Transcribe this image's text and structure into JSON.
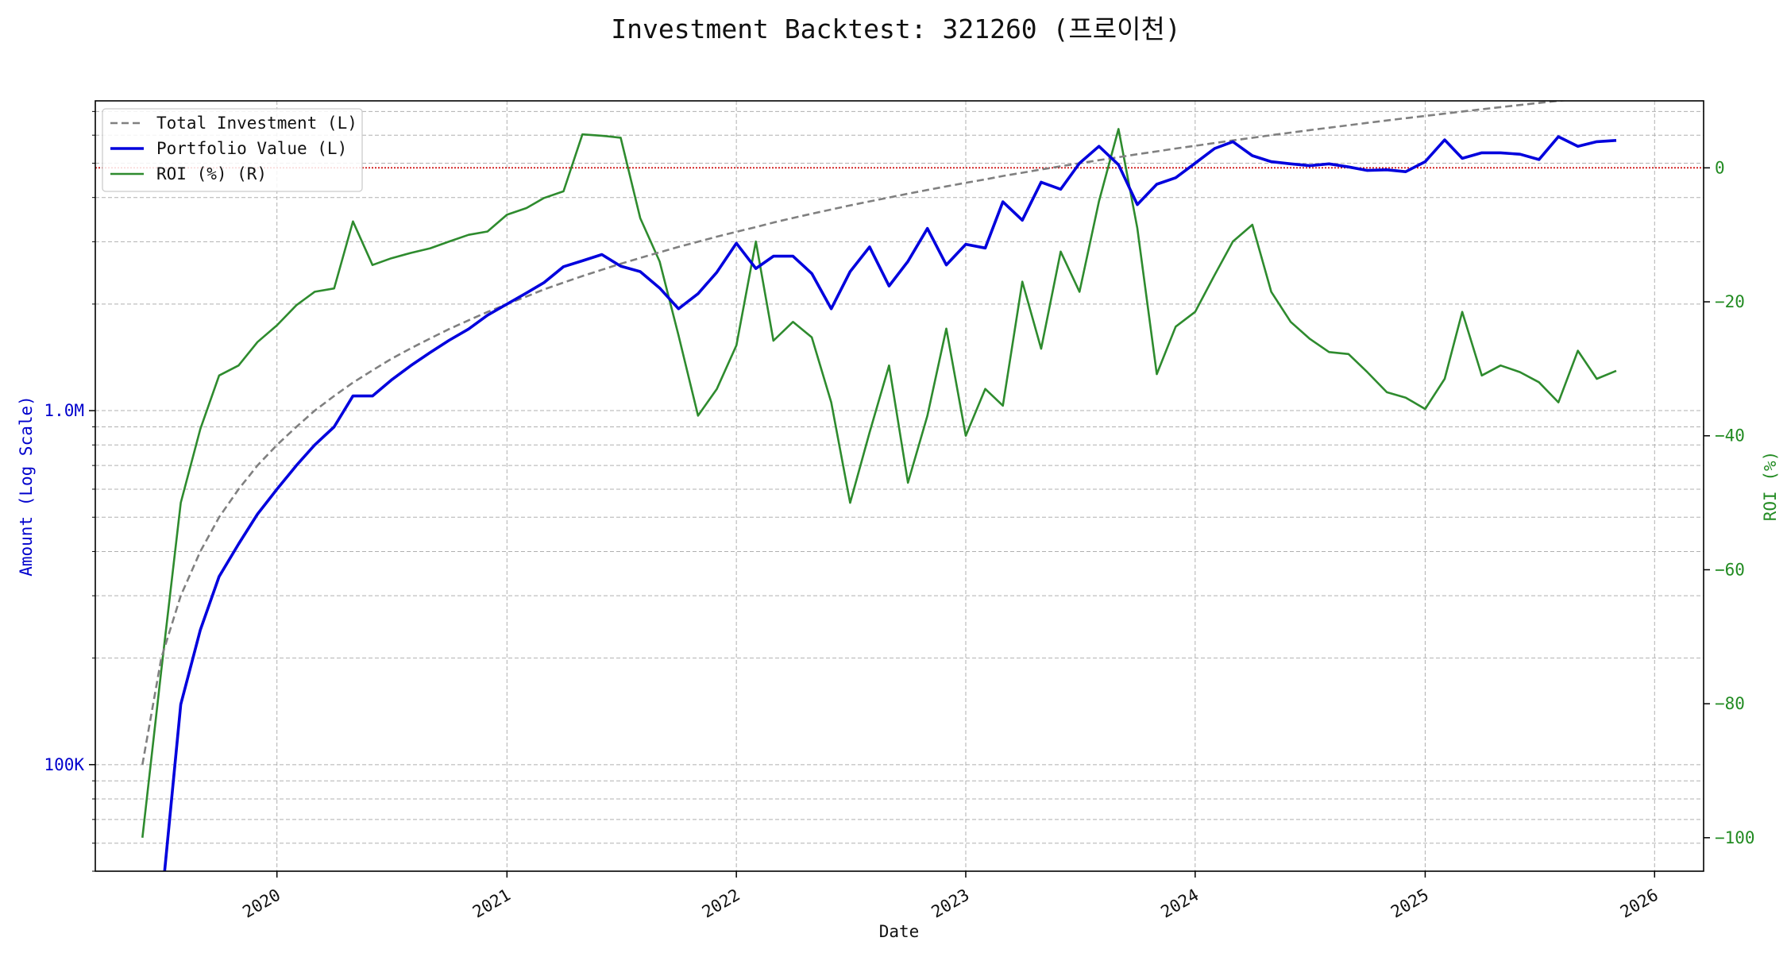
{
  "chart_data": {
    "type": "line",
    "title": "Investment Backtest: 321260 (프로이천)",
    "xlabel": "Date",
    "ylabel_left": "Amount (Log Scale)",
    "ylabel_right": "ROI (%)",
    "left_scale": "log",
    "left_ylim": [
      50000,
      7500000
    ],
    "right_ylim": [
      -105,
      10
    ],
    "xlim": [
      "2019-03-18",
      "2026-03-20"
    ],
    "x_ticks": [
      "2020",
      "2021",
      "2022",
      "2023",
      "2024",
      "2025",
      "2026"
    ],
    "left_ticks": [
      {
        "value": 100000,
        "label": "100K"
      },
      {
        "value": 1000000,
        "label": "1.0M"
      }
    ],
    "right_ticks": [
      0,
      -20,
      -40,
      -60,
      -80,
      -100
    ],
    "grid": true,
    "legend_position": "top-left",
    "reference_line": {
      "axis": "right",
      "value": 0,
      "color": "#cc0000",
      "style": "dotted"
    },
    "colors": {
      "investment": "#808080",
      "portfolio": "#0000dd",
      "roi": "#2e8b2e",
      "left_axis": "#0000cc",
      "right_axis": "#228b22"
    },
    "series": [
      {
        "name": "Total Investment (L)",
        "axis": "left",
        "style": "dashed",
        "x": [
          "2019-06-01",
          "2019-07-01",
          "2019-08-01",
          "2019-09-01",
          "2019-10-01",
          "2019-11-01",
          "2019-12-01",
          "2020-01-01",
          "2020-02-01",
          "2020-03-01",
          "2020-04-01",
          "2020-05-01",
          "2020-06-01",
          "2020-07-01",
          "2020-08-01",
          "2020-09-01",
          "2020-10-01",
          "2020-11-01",
          "2020-12-01",
          "2021-01-01",
          "2021-02-01",
          "2021-03-01",
          "2021-04-01",
          "2021-05-01",
          "2021-06-01",
          "2021-07-01",
          "2021-08-01",
          "2021-09-01",
          "2021-10-01",
          "2021-11-01",
          "2021-12-01",
          "2022-01-01",
          "2022-02-01",
          "2022-03-01",
          "2022-04-01",
          "2022-05-01",
          "2022-06-01",
          "2022-07-01",
          "2022-08-01",
          "2022-09-01",
          "2022-10-01",
          "2022-11-01",
          "2022-12-01",
          "2023-01-01",
          "2023-02-01",
          "2023-03-01",
          "2023-04-01",
          "2023-05-01",
          "2023-06-01",
          "2023-07-01",
          "2023-08-01",
          "2023-09-01",
          "2023-10-01",
          "2023-11-01",
          "2023-12-01",
          "2024-01-01",
          "2024-02-01",
          "2024-03-01",
          "2024-04-01",
          "2024-05-01",
          "2024-06-01",
          "2024-07-01",
          "2024-08-01",
          "2024-09-01",
          "2024-10-01",
          "2024-11-01",
          "2024-12-01",
          "2025-01-01",
          "2025-02-01",
          "2025-03-01",
          "2025-04-01",
          "2025-05-01",
          "2025-06-01",
          "2025-07-01",
          "2025-08-01",
          "2025-09-01",
          "2025-10-01",
          "2025-11-01"
        ],
        "y": [
          100000,
          200000,
          300000,
          400000,
          500000,
          600000,
          700000,
          800000,
          900000,
          1000000,
          1100000,
          1200000,
          1300000,
          1400000,
          1500000,
          1600000,
          1700000,
          1800000,
          1900000,
          2000000,
          2100000,
          2200000,
          2300000,
          2400000,
          2500000,
          2600000,
          2700000,
          2800000,
          2900000,
          3000000,
          3100000,
          3200000,
          3300000,
          3400000,
          3500000,
          3600000,
          3700000,
          3800000,
          3900000,
          4000000,
          4100000,
          4200000,
          4300000,
          4400000,
          4500000,
          4600000,
          4700000,
          4800000,
          4900000,
          5000000,
          5100000,
          5200000,
          5300000,
          5400000,
          5500000,
          5600000,
          5700000,
          5800000,
          5900000,
          6000000,
          6100000,
          6200000,
          6300000,
          6400000,
          6500000,
          6600000,
          6700000,
          6800000,
          6900000,
          7000000,
          7100000,
          7200000,
          7300000,
          7400000,
          7500000,
          7600000,
          7700000,
          7800000
        ]
      },
      {
        "name": "Portfolio Value (L)",
        "axis": "left",
        "style": "solid",
        "x": [
          "2019-07-01",
          "2019-08-01",
          "2019-09-01",
          "2019-10-01",
          "2019-11-01",
          "2019-12-01",
          "2020-01-01",
          "2020-02-01",
          "2020-03-01",
          "2020-04-01",
          "2020-05-01",
          "2020-06-01",
          "2020-07-01",
          "2020-08-01",
          "2020-09-01",
          "2020-10-01",
          "2020-11-01",
          "2020-12-01",
          "2021-01-01",
          "2021-02-01",
          "2021-03-01",
          "2021-04-01",
          "2021-05-01",
          "2021-06-01",
          "2021-07-01",
          "2021-08-01",
          "2021-09-01",
          "2021-10-01",
          "2021-11-01",
          "2021-12-01",
          "2022-01-01",
          "2022-02-01",
          "2022-03-01",
          "2022-04-01",
          "2022-05-01",
          "2022-06-01",
          "2022-07-01",
          "2022-08-01",
          "2022-09-01",
          "2022-10-01",
          "2022-11-01",
          "2022-12-01",
          "2023-01-01",
          "2023-02-01",
          "2023-03-01",
          "2023-04-01",
          "2023-05-01",
          "2023-06-01",
          "2023-07-01",
          "2023-08-01",
          "2023-09-01",
          "2023-10-01",
          "2023-11-01",
          "2023-12-01",
          "2024-01-01",
          "2024-02-01",
          "2024-03-01",
          "2024-04-01",
          "2024-05-01",
          "2024-06-01",
          "2024-07-01",
          "2024-08-01",
          "2024-09-01",
          "2024-10-01",
          "2024-11-01",
          "2024-12-01",
          "2025-01-01",
          "2025-02-01",
          "2025-03-01",
          "2025-04-01",
          "2025-05-01",
          "2025-06-01",
          "2025-07-01",
          "2025-08-01",
          "2025-09-01",
          "2025-10-01",
          "2025-11-01"
        ],
        "y": [
          40000,
          148000,
          240000,
          340000,
          420000,
          510000,
          600000,
          700000,
          800000,
          900000,
          1100000,
          1100000,
          1220000,
          1340000,
          1460000,
          1580000,
          1700000,
          1860000,
          2000000,
          2150000,
          2300000,
          2550000,
          2650000,
          2760000,
          2560000,
          2470000,
          2220000,
          1940000,
          2140000,
          2460000,
          2970000,
          2520000,
          2730000,
          2730000,
          2440000,
          1940000,
          2470000,
          2900000,
          2250000,
          2640000,
          3270000,
          2580000,
          2950000,
          2880000,
          3890000,
          3450000,
          4420000,
          4220000,
          5000000,
          5580000,
          4950000,
          3820000,
          4360000,
          4550000,
          5000000,
          5500000,
          5750000,
          5250000,
          5050000,
          4980000,
          4920000,
          4980000,
          4880000,
          4770000,
          4790000,
          4730000,
          5050000,
          5820000,
          5160000,
          5350000,
          5350000,
          5300000,
          5120000,
          5940000,
          5580000,
          5750000,
          5800000
        ]
      },
      {
        "name": "ROI (%) (R)",
        "axis": "right",
        "style": "solid",
        "x": [
          "2019-06-01",
          "2019-07-01",
          "2019-08-01",
          "2019-09-01",
          "2019-10-01",
          "2019-11-01",
          "2019-12-01",
          "2020-01-01",
          "2020-02-01",
          "2020-03-01",
          "2020-04-01",
          "2020-05-01",
          "2020-06-01",
          "2020-07-01",
          "2020-08-01",
          "2020-09-01",
          "2020-10-01",
          "2020-11-01",
          "2020-12-01",
          "2021-01-01",
          "2021-02-01",
          "2021-03-01",
          "2021-04-01",
          "2021-05-01",
          "2021-06-01",
          "2021-07-01",
          "2021-08-01",
          "2021-09-01",
          "2021-10-01",
          "2021-11-01",
          "2021-12-01",
          "2022-01-01",
          "2022-02-01",
          "2022-03-01",
          "2022-04-01",
          "2022-05-01",
          "2022-06-01",
          "2022-07-01",
          "2022-08-01",
          "2022-09-01",
          "2022-10-01",
          "2022-11-01",
          "2022-12-01",
          "2023-01-01",
          "2023-02-01",
          "2023-03-01",
          "2023-04-01",
          "2023-05-01",
          "2023-06-01",
          "2023-07-01",
          "2023-08-01",
          "2023-09-01",
          "2023-10-01",
          "2023-11-01",
          "2023-12-01",
          "2024-01-01",
          "2024-02-01",
          "2024-03-01",
          "2024-04-01",
          "2024-05-01",
          "2024-06-01",
          "2024-07-01",
          "2024-08-01",
          "2024-09-01",
          "2024-10-01",
          "2024-11-01",
          "2024-12-01",
          "2025-01-01",
          "2025-02-01",
          "2025-03-01",
          "2025-04-01",
          "2025-05-01",
          "2025-06-01",
          "2025-07-01",
          "2025-08-01",
          "2025-09-01",
          "2025-10-01",
          "2025-11-01"
        ],
        "y": [
          -100,
          -75,
          -50,
          -39,
          -31,
          -29.5,
          -26,
          -23.5,
          -20.5,
          -18.5,
          -18,
          -8,
          -14.5,
          -13.5,
          -12.7,
          -12,
          -11,
          -10,
          -9.5,
          -7,
          -6,
          -4.5,
          -3.5,
          5,
          4.8,
          4.5,
          -7.5,
          -14,
          -25,
          -37,
          -33,
          -26.5,
          -11,
          -25.8,
          -23,
          -25.3,
          -35,
          -50,
          -39.5,
          -29.5,
          -47,
          -37,
          -24,
          -40,
          -33,
          -35.5,
          -17,
          -27,
          -12.5,
          -18.5,
          -5,
          5.8,
          -9,
          -30.8,
          -23.7,
          -21.5,
          -16,
          -11,
          -8.5,
          -18.5,
          -23,
          -25.5,
          -27.5,
          -27.8,
          -30.5,
          -33.5,
          -34.3,
          -36,
          -31.5,
          -21.5,
          -31,
          -29.5,
          -30.5,
          -32,
          -35,
          -27.3,
          -31.5,
          -30.3
        ]
      }
    ]
  }
}
